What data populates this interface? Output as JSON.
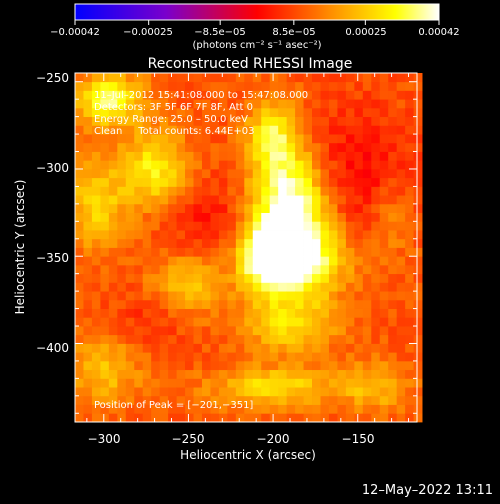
{
  "chart_data": {
    "type": "heatmap",
    "title": "Reconstructed RHESSI Image",
    "xlabel": "Heliocentric X (arcsec)",
    "ylabel": "Heliocentric Y (arcsec)",
    "xlim": [
      -317,
      -115
    ],
    "ylim": [
      -445,
      -245
    ],
    "x_ticks": [
      -300,
      -250,
      -200,
      -150
    ],
    "x_tick_labels": [
      "−300",
      "−250",
      "−200",
      "−150"
    ],
    "y_ticks": [
      -250,
      -300,
      -350,
      -400
    ],
    "y_tick_labels": [
      "−250",
      "−300",
      "−350",
      "−400"
    ],
    "colorbar": {
      "range": [
        -0.00042,
        0.00042
      ],
      "tick_values": [
        -0.00042,
        -0.00025,
        -8.5e-05,
        8.5e-05,
        0.00025,
        0.00042
      ],
      "tick_labels": [
        "−0.00042",
        "−0.00025",
        "−8.5e−05",
        "8.5e−05",
        "0.00025",
        "0.00042"
      ],
      "units": "(photons cm⁻² s⁻¹ asec⁻²)",
      "colors": [
        "#0000ff",
        "#7a00cc",
        "#ff0000",
        "#ff8c00",
        "#ffff00",
        "#ffffff"
      ]
    },
    "annotations": [
      "11–Jul–2012 15:41:08.000 to 15:47:08.000",
      "Detectors: 3F 5F 6F 7F 8F, Att 0",
      "Energy Range: 25.0 – 50.0 keV",
      "Clean     Total counts: 6.44E+03"
    ],
    "peak_label": "Position of Peak = [−201,−351]",
    "peak": [
      -201,
      -351
    ],
    "sources": [
      {
        "x": -201,
        "y": -351,
        "amp": 1.0,
        "sx": 12,
        "sy": 12
      },
      {
        "x": -190,
        "y": -322,
        "amp": 0.82,
        "sx": 15,
        "sy": 20
      },
      {
        "x": -200,
        "y": -282,
        "amp": 0.55,
        "sx": 11,
        "sy": 15
      },
      {
        "x": -180,
        "y": -352,
        "amp": 0.55,
        "sx": 18,
        "sy": 14
      },
      {
        "x": -190,
        "y": -388,
        "amp": 0.42,
        "sx": 20,
        "sy": 12
      },
      {
        "x": -297,
        "y": -260,
        "amp": 0.62,
        "sx": 14,
        "sy": 10
      },
      {
        "x": -270,
        "y": -300,
        "amp": 0.5,
        "sx": 14,
        "sy": 16
      },
      {
        "x": -305,
        "y": -320,
        "amp": 0.4,
        "sx": 12,
        "sy": 18
      },
      {
        "x": -250,
        "y": -365,
        "amp": 0.35,
        "sx": 16,
        "sy": 12
      },
      {
        "x": -300,
        "y": -415,
        "amp": 0.32,
        "sx": 16,
        "sy": 14
      },
      {
        "x": -200,
        "y": -425,
        "amp": 0.42,
        "sx": 26,
        "sy": 8
      },
      {
        "x": -140,
        "y": -425,
        "amp": 0.3,
        "sx": 14,
        "sy": 10
      },
      {
        "x": -130,
        "y": -330,
        "amp": 0.2,
        "sx": 8,
        "sy": 14
      },
      {
        "x": -240,
        "y": -330,
        "amp": -0.18,
        "sx": 16,
        "sy": 18
      },
      {
        "x": -150,
        "y": -300,
        "amp": -0.22,
        "sx": 20,
        "sy": 25
      },
      {
        "x": -275,
        "y": -385,
        "amp": -0.12,
        "sx": 14,
        "sy": 12
      }
    ]
  },
  "timestamp": "12–May–2022 13:11"
}
